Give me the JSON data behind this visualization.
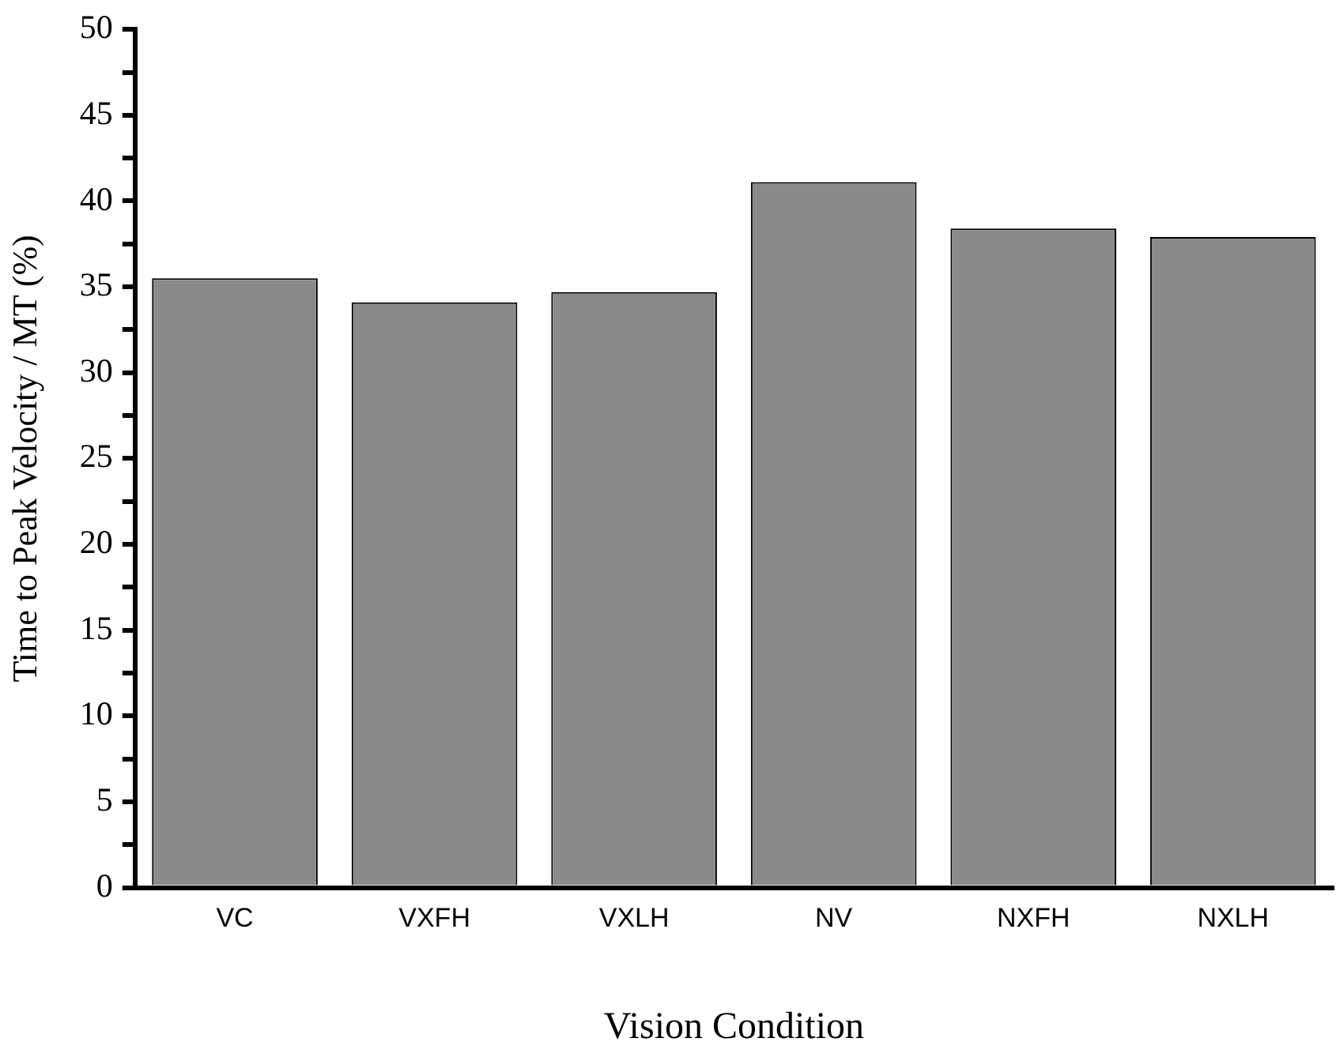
{
  "chart_data": {
    "type": "bar",
    "xlabel": "Vision Condition",
    "ylabel": "Time to Peak Velocity / MT (%)",
    "categories": [
      "VC",
      "VXFH",
      "VXLH",
      "NV",
      "NXFH",
      "NXLH"
    ],
    "values": [
      35.5,
      34.1,
      34.7,
      41.1,
      38.4,
      37.9
    ],
    "color": "#8a8a8a",
    "ylim": [
      0,
      50
    ],
    "yticks": [
      0,
      {
        "value": 2.5,
        "label": null
      },
      5,
      {
        "value": 7.5,
        "label": null
      },
      10,
      {
        "value": 12.5,
        "label": null
      },
      15,
      {
        "value": 17.5,
        "label": null
      },
      20,
      {
        "value": 22.5,
        "label": null
      },
      25,
      {
        "value": 27.5,
        "label": null
      },
      30,
      {
        "value": 32.5,
        "label": null
      },
      35,
      {
        "value": 37.5,
        "label": null
      },
      40,
      {
        "value": 42.5,
        "label": null
      },
      45,
      {
        "value": 47.5,
        "label": null
      },
      50
    ],
    "grid": false,
    "legend": false
  }
}
